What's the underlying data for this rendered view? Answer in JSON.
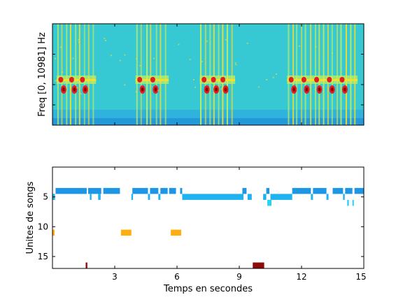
{
  "chart_data": [
    {
      "type": "heatmap",
      "title": "",
      "ylabel": "Freq [0, 10981] Hz",
      "xlabel": "",
      "xlim": [
        0,
        15
      ],
      "ylim": [
        0,
        10981
      ],
      "colormap": "jet",
      "dominant_colors": [
        "#2fc8d6",
        "#3ee6c8",
        "#c8f05a",
        "#ffe020",
        "#e02020",
        "#8a0000"
      ],
      "song_bursts_s": [
        {
          "start": 0.2,
          "end": 2.1
        },
        {
          "start": 4.0,
          "end": 5.6
        },
        {
          "start": 7.1,
          "end": 8.8
        },
        {
          "start": 11.3,
          "end": 14.7
        }
      ]
    },
    {
      "type": "scatter",
      "title": "",
      "xlabel": "Temps en secondes",
      "ylabel": "Unites de songs",
      "xlim": [
        0,
        15
      ],
      "ylim": [
        0,
        17
      ],
      "y_reversed": true,
      "xticks": [
        3,
        6,
        9,
        12,
        15
      ],
      "yticks": [
        5,
        10,
        15
      ],
      "grid": false,
      "segments": [
        {
          "unit": 4,
          "start": 0.15,
          "end": 1.65,
          "color": "#1e96e6"
        },
        {
          "unit": 4,
          "start": 1.72,
          "end": 2.35,
          "color": "#1e96e6"
        },
        {
          "unit": 4,
          "start": 2.45,
          "end": 3.25,
          "color": "#1e96e6"
        },
        {
          "unit": 4,
          "start": 3.85,
          "end": 4.6,
          "color": "#1e96e6"
        },
        {
          "unit": 4,
          "start": 4.7,
          "end": 5.1,
          "color": "#1e96e6"
        },
        {
          "unit": 4,
          "start": 5.2,
          "end": 5.55,
          "color": "#1e96e6"
        },
        {
          "unit": 4,
          "start": 5.62,
          "end": 5.95,
          "color": "#1e96e6"
        },
        {
          "unit": 4,
          "start": 6.15,
          "end": 6.25,
          "color": "#1e96e6"
        },
        {
          "unit": 4,
          "start": 9.15,
          "end": 9.35,
          "color": "#1e96e6"
        },
        {
          "unit": 4,
          "start": 10.3,
          "end": 10.45,
          "color": "#1e96e6"
        },
        {
          "unit": 4,
          "start": 11.55,
          "end": 12.45,
          "color": "#1e96e6"
        },
        {
          "unit": 4,
          "start": 12.55,
          "end": 13.2,
          "color": "#1e96e6"
        },
        {
          "unit": 4,
          "start": 13.5,
          "end": 14.0,
          "color": "#1e96e6"
        },
        {
          "unit": 4,
          "start": 14.1,
          "end": 14.45,
          "color": "#1e96e6"
        },
        {
          "unit": 4,
          "start": 14.55,
          "end": 15.0,
          "color": "#1e96e6"
        },
        {
          "unit": 5,
          "start": 0.0,
          "end": 0.12,
          "color": "#1eb2f0"
        },
        {
          "unit": 5,
          "start": 1.8,
          "end": 1.88,
          "color": "#1eb2f0"
        },
        {
          "unit": 5,
          "start": 2.2,
          "end": 2.32,
          "color": "#1eb2f0"
        },
        {
          "unit": 5,
          "start": 3.8,
          "end": 3.88,
          "color": "#1eb2f0"
        },
        {
          "unit": 5,
          "start": 4.6,
          "end": 4.7,
          "color": "#1eb2f0"
        },
        {
          "unit": 5,
          "start": 5.1,
          "end": 5.2,
          "color": "#1eb2f0"
        },
        {
          "unit": 5,
          "start": 6.25,
          "end": 9.2,
          "color": "#1eb2f0"
        },
        {
          "unit": 5,
          "start": 9.4,
          "end": 9.6,
          "color": "#1eb2f0"
        },
        {
          "unit": 5,
          "start": 10.15,
          "end": 10.3,
          "color": "#1eb2f0"
        },
        {
          "unit": 5,
          "start": 10.5,
          "end": 11.55,
          "color": "#1eb2f0"
        },
        {
          "unit": 5,
          "start": 12.45,
          "end": 12.55,
          "color": "#1eb2f0"
        },
        {
          "unit": 5,
          "start": 13.2,
          "end": 13.3,
          "color": "#1eb2f0"
        },
        {
          "unit": 5,
          "start": 14.0,
          "end": 14.08,
          "color": "#1eb2f0"
        },
        {
          "unit": 6,
          "start": 10.35,
          "end": 10.55,
          "color": "#28d2f0"
        },
        {
          "unit": 6,
          "start": 14.2,
          "end": 14.28,
          "color": "#28d2f0"
        },
        {
          "unit": 6,
          "start": 14.45,
          "end": 14.52,
          "color": "#28d2f0"
        },
        {
          "unit": 11,
          "start": 0.0,
          "end": 0.1,
          "color": "#ffad0f"
        },
        {
          "unit": 11,
          "start": 3.3,
          "end": 3.8,
          "color": "#ffad0f"
        },
        {
          "unit": 11,
          "start": 5.7,
          "end": 6.2,
          "color": "#ffad0f"
        },
        {
          "unit": 16.5,
          "start": 1.6,
          "end": 1.68,
          "color": "#8c0a0a"
        },
        {
          "unit": 16.5,
          "start": 9.65,
          "end": 10.2,
          "color": "#8c0a0a"
        }
      ]
    }
  ]
}
